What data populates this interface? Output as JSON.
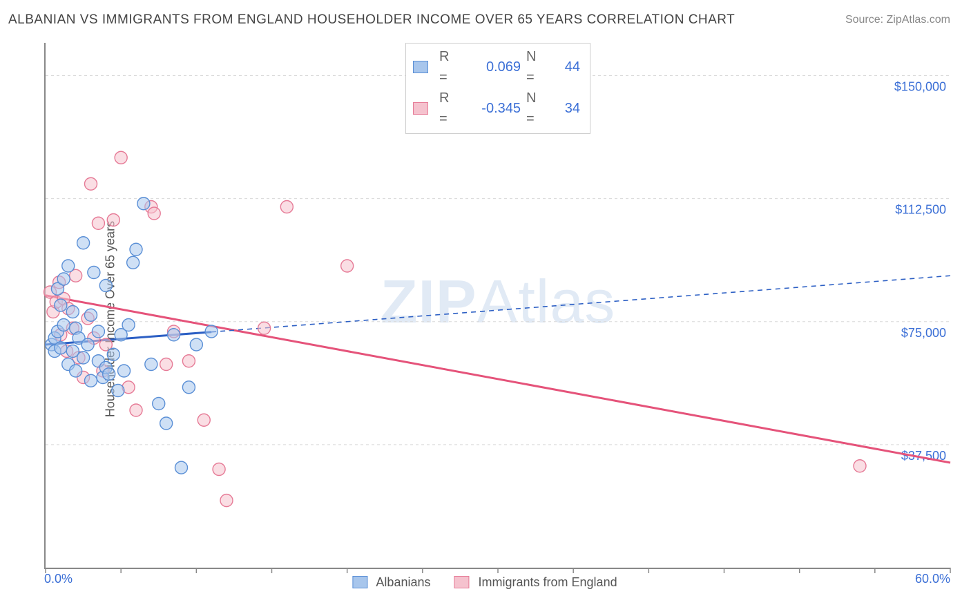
{
  "header": {
    "title": "ALBANIAN VS IMMIGRANTS FROM ENGLAND HOUSEHOLDER INCOME OVER 65 YEARS CORRELATION CHART",
    "source_prefix": "Source: ",
    "source_name": "ZipAtlas.com"
  },
  "watermark": {
    "bold": "ZIP",
    "rest": "Atlas"
  },
  "axes": {
    "ylabel": "Householder Income Over 65 years",
    "x": {
      "min": 0,
      "max": 60,
      "label_min": "0.0%",
      "label_max": "60.0%",
      "ticks": [
        0,
        5,
        10,
        15,
        20,
        25,
        30,
        35,
        40,
        45,
        50,
        55,
        60
      ]
    },
    "y": {
      "min": 0,
      "max": 160000,
      "gridlines": [
        37500,
        75000,
        112500,
        150000
      ],
      "labels": [
        "$37,500",
        "$75,000",
        "$112,500",
        "$150,000"
      ]
    }
  },
  "colors": {
    "blue_fill": "#a8c6ec",
    "blue_stroke": "#5a8fd6",
    "pink_fill": "#f5c2ce",
    "pink_stroke": "#e67a96",
    "grid": "#d8d8d8",
    "axis": "#888888",
    "label_blue": "#3b6fd6",
    "text_gray": "#555555",
    "trend_blue": "#2c5fc4",
    "trend_pink": "#e5537a"
  },
  "stats_legend": {
    "rows": [
      {
        "swatch": "blue",
        "r_label": "R =",
        "r": "0.069",
        "n_label": "N =",
        "n": "44"
      },
      {
        "swatch": "pink",
        "r_label": "R =",
        "r": "-0.345",
        "n_label": "N =",
        "n": "34"
      }
    ]
  },
  "bottom_legend": {
    "items": [
      {
        "swatch": "blue",
        "label": "Albanians"
      },
      {
        "swatch": "pink",
        "label": "Immigrants from England"
      }
    ]
  },
  "marker": {
    "radius": 9,
    "fill_opacity": 0.55,
    "stroke_width": 1.4
  },
  "series": {
    "blue": {
      "points": [
        [
          0.4,
          68000
        ],
        [
          0.6,
          70000
        ],
        [
          0.6,
          66000
        ],
        [
          0.8,
          85000
        ],
        [
          0.8,
          72000
        ],
        [
          1.0,
          67000
        ],
        [
          1.0,
          80000
        ],
        [
          1.2,
          74000
        ],
        [
          1.2,
          88000
        ],
        [
          1.5,
          92000
        ],
        [
          1.5,
          62000
        ],
        [
          1.8,
          78000
        ],
        [
          1.8,
          66000
        ],
        [
          2.0,
          73000
        ],
        [
          2.0,
          60000
        ],
        [
          2.2,
          70000
        ],
        [
          2.5,
          99000
        ],
        [
          2.5,
          64000
        ],
        [
          2.8,
          68000
        ],
        [
          3.0,
          77000
        ],
        [
          3.0,
          57000
        ],
        [
          3.2,
          90000
        ],
        [
          3.5,
          63000
        ],
        [
          3.5,
          72000
        ],
        [
          3.8,
          58000
        ],
        [
          4.0,
          86000
        ],
        [
          4.0,
          61000
        ],
        [
          4.2,
          59000
        ],
        [
          4.5,
          65000
        ],
        [
          4.8,
          54000
        ],
        [
          5.0,
          71000
        ],
        [
          5.2,
          60000
        ],
        [
          5.5,
          74000
        ],
        [
          6.0,
          97000
        ],
        [
          6.5,
          111000
        ],
        [
          7.0,
          62000
        ],
        [
          7.5,
          50000
        ],
        [
          8.0,
          44000
        ],
        [
          8.5,
          71000
        ],
        [
          9.0,
          30500
        ],
        [
          9.5,
          55000
        ],
        [
          10.0,
          68000
        ],
        [
          11.0,
          72000
        ],
        [
          5.8,
          93000
        ]
      ],
      "trend": {
        "y_at_xmin": 68000,
        "y_at_xmax": 89000,
        "solid_until_x": 11
      }
    },
    "pink": {
      "points": [
        [
          0.3,
          84000
        ],
        [
          0.5,
          78000
        ],
        [
          0.7,
          81000
        ],
        [
          0.9,
          87000
        ],
        [
          1.0,
          71000
        ],
        [
          1.2,
          82000
        ],
        [
          1.4,
          66000
        ],
        [
          1.5,
          79000
        ],
        [
          1.8,
          73000
        ],
        [
          2.0,
          89000
        ],
        [
          2.2,
          64000
        ],
        [
          2.5,
          58000
        ],
        [
          2.8,
          76000
        ],
        [
          3.0,
          117000
        ],
        [
          3.2,
          70000
        ],
        [
          3.5,
          105000
        ],
        [
          3.8,
          60000
        ],
        [
          4.0,
          68000
        ],
        [
          4.5,
          106000
        ],
        [
          5.0,
          125000
        ],
        [
          5.5,
          55000
        ],
        [
          6.0,
          48000
        ],
        [
          7.0,
          110000
        ],
        [
          8.0,
          62000
        ],
        [
          8.5,
          72000
        ],
        [
          9.5,
          63000
        ],
        [
          10.5,
          45000
        ],
        [
          11.5,
          30000
        ],
        [
          12.0,
          20500
        ],
        [
          14.5,
          73000
        ],
        [
          16.0,
          110000
        ],
        [
          20.0,
          92000
        ],
        [
          54.0,
          31000
        ],
        [
          7.2,
          108000
        ]
      ],
      "trend": {
        "y_at_xmin": 83000,
        "y_at_xmax": 32000,
        "solid_until_x": 60
      }
    }
  }
}
